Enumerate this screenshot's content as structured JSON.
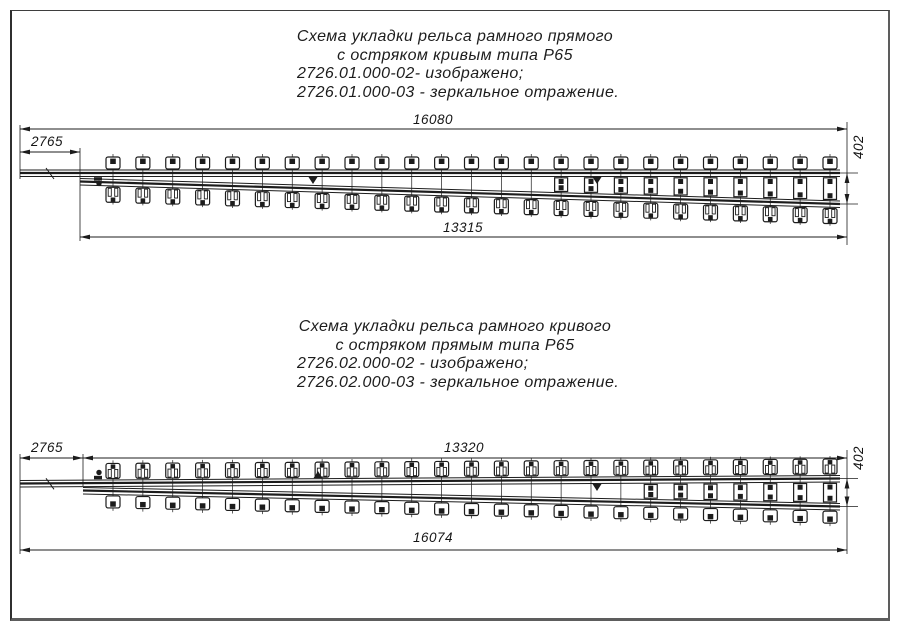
{
  "sheet": {
    "background": "#ffffff",
    "line_color": "#1c1c1c",
    "frame_color": "#5d5d5d"
  },
  "diagrams": [
    {
      "title": {
        "line1": "Схема укладки рельса рамного прямого",
        "line2": "с остряком кривым типа Р65",
        "line3": "2726.01.000-02- изображено;",
        "line4": "2726.01.000-03 - зеркальное отражение."
      },
      "dimensions": {
        "total_length": "16080",
        "left_segment": "2765",
        "span": "13315",
        "end_offset": "402"
      },
      "sleeper_count": 25
    },
    {
      "title": {
        "line1": "Схема укладки рельса рамного кривого",
        "line2": "с остряком прямым типа Р65",
        "line3": "2726.02.000-02 - изображено;",
        "line4": "2726.02.000-03 - зеркальное отражение."
      },
      "dimensions": {
        "total_length": "16074",
        "left_segment": "2765",
        "span": "13320",
        "end_offset": "402"
      },
      "sleeper_count": 25
    }
  ]
}
